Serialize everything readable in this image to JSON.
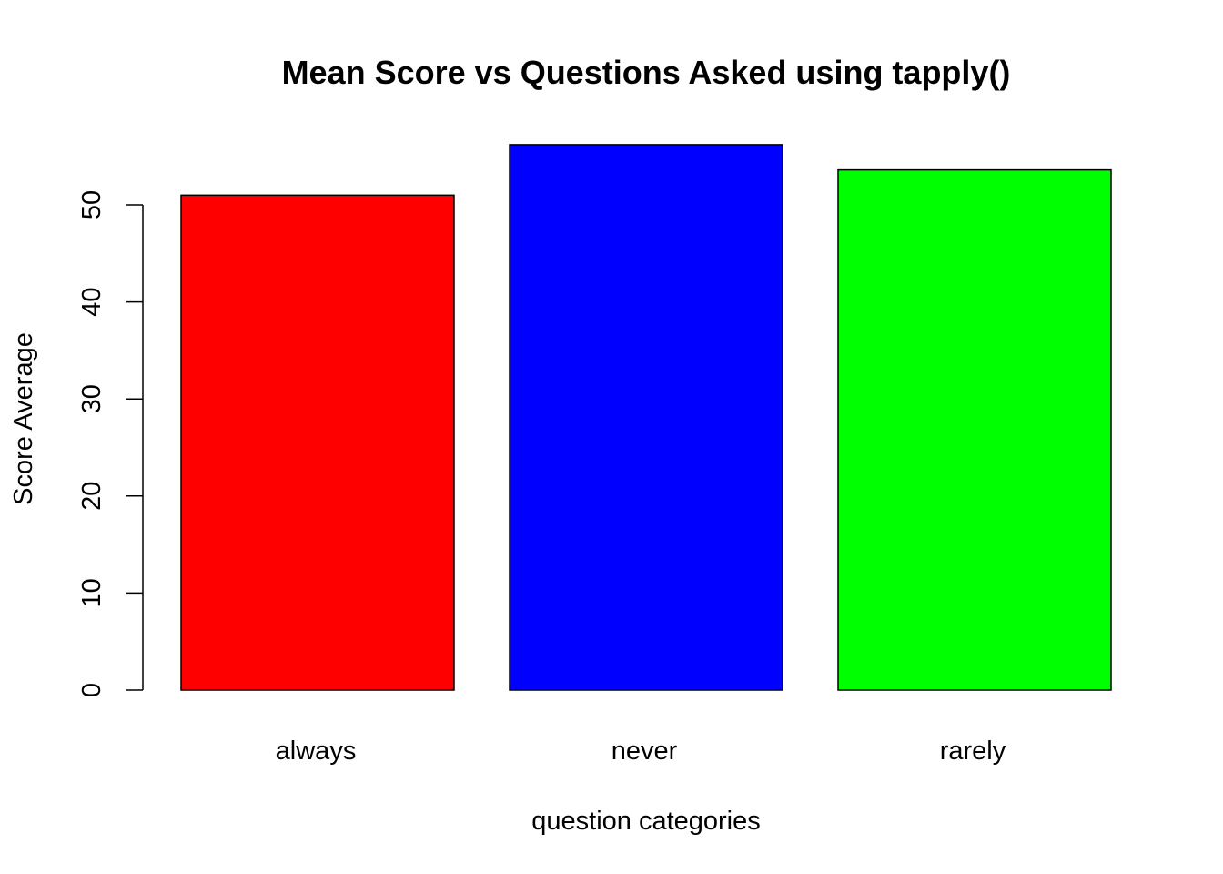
{
  "chart_data": {
    "type": "bar",
    "title": "Mean Score vs Questions Asked using tapply()",
    "xlabel": "question categories",
    "ylabel": "Score Average",
    "categories": [
      "always",
      "never",
      "rarely"
    ],
    "values": [
      51,
      56.2,
      53.6
    ],
    "colors": [
      "#FF0000",
      "#0000FF",
      "#00FF00"
    ],
    "yticks": [
      0,
      10,
      20,
      30,
      40,
      50
    ],
    "ylim": [
      0,
      56.2
    ],
    "grid": false,
    "legend": "none"
  }
}
